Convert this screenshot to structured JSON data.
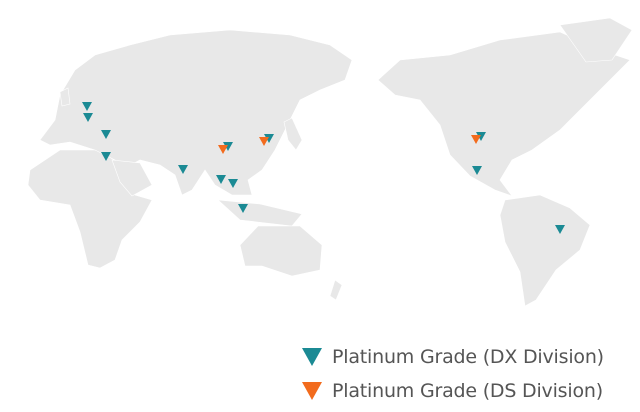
{
  "colors": {
    "land": "#e8e8e8",
    "border": "#ffffff",
    "dx": "#1b8a94",
    "ds": "#f26b1d"
  },
  "marker_icon": "inverted-triangle",
  "legend": [
    {
      "key": "dx",
      "label": "Platinum Grade (DX Division)"
    },
    {
      "key": "ds",
      "label": "Platinum Grade (DS Division)"
    }
  ]
}
